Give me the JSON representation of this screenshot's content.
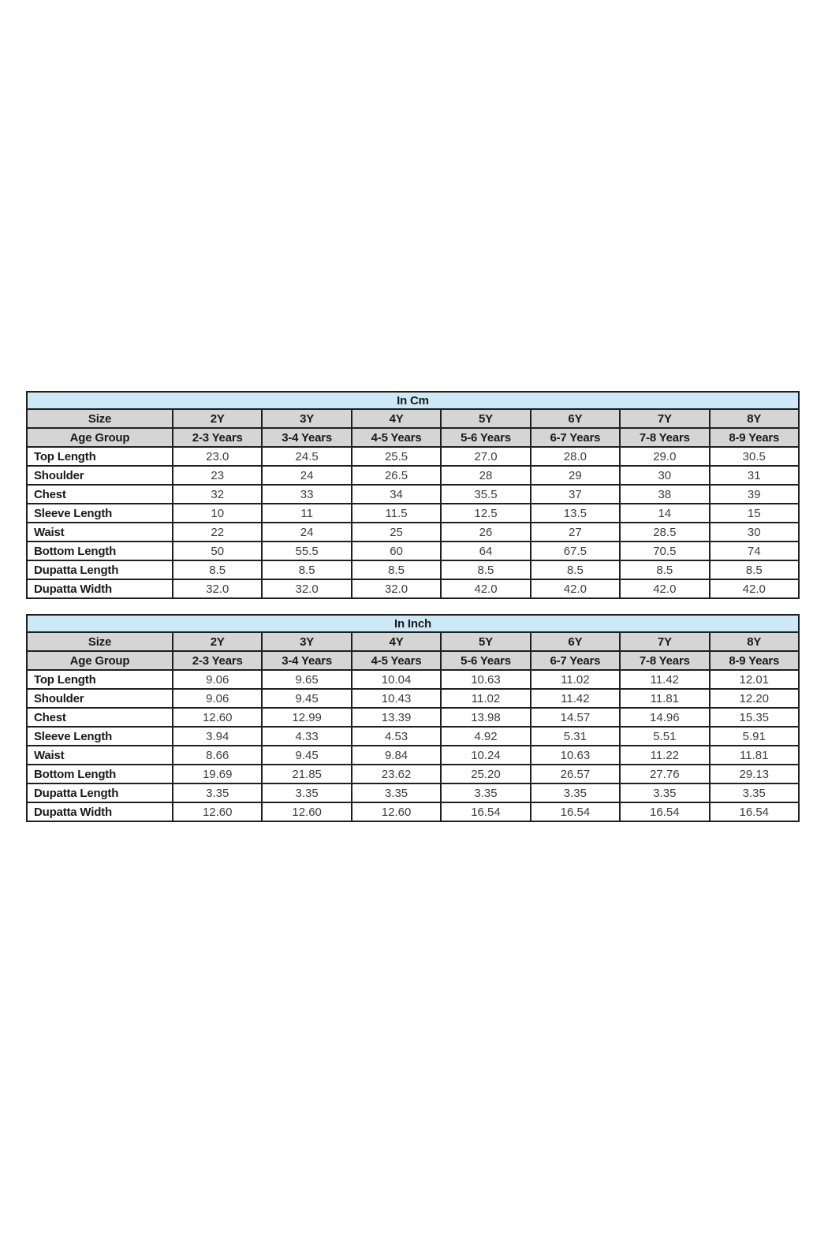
{
  "page": {
    "background": "#ffffff"
  },
  "colors": {
    "title_bg": "#cde9f6",
    "header_bg": "#d5d5d5",
    "border": "#1f1f1f",
    "label_text": "#1a1a1a",
    "value_text": "#3d3d3d"
  },
  "tables": [
    {
      "id": "cm",
      "title": "In Cm",
      "header": {
        "size_label": "Size",
        "age_label": "Age Group"
      },
      "sizes": [
        "2Y",
        "3Y",
        "4Y",
        "5Y",
        "6Y",
        "7Y",
        "8Y"
      ],
      "age_groups": [
        "2-3 Years",
        "3-4 Years",
        "4-5 Years",
        "5-6 Years",
        "6-7 Years",
        "7-8 Years",
        "8-9 Years"
      ],
      "rows": [
        {
          "label": "Top Length",
          "values": [
            "23.0",
            "24.5",
            "25.5",
            "27.0",
            "28.0",
            "29.0",
            "30.5"
          ]
        },
        {
          "label": "Shoulder",
          "values": [
            "23",
            "24",
            "26.5",
            "28",
            "29",
            "30",
            "31"
          ]
        },
        {
          "label": "Chest",
          "values": [
            "32",
            "33",
            "34",
            "35.5",
            "37",
            "38",
            "39"
          ]
        },
        {
          "label": "Sleeve Length",
          "values": [
            "10",
            "11",
            "11.5",
            "12.5",
            "13.5",
            "14",
            "15"
          ]
        },
        {
          "label": "Waist",
          "values": [
            "22",
            "24",
            "25",
            "26",
            "27",
            "28.5",
            "30"
          ]
        },
        {
          "label": "Bottom Length",
          "values": [
            "50",
            "55.5",
            "60",
            "64",
            "67.5",
            "70.5",
            "74"
          ]
        },
        {
          "label": "Dupatta Length",
          "values": [
            "8.5",
            "8.5",
            "8.5",
            "8.5",
            "8.5",
            "8.5",
            "8.5"
          ]
        },
        {
          "label": "Dupatta Width",
          "values": [
            "32.0",
            "32.0",
            "32.0",
            "42.0",
            "42.0",
            "42.0",
            "42.0"
          ]
        }
      ]
    },
    {
      "id": "inch",
      "title": "In Inch",
      "header": {
        "size_label": "Size",
        "age_label": "Age Group"
      },
      "sizes": [
        "2Y",
        "3Y",
        "4Y",
        "5Y",
        "6Y",
        "7Y",
        "8Y"
      ],
      "age_groups": [
        "2-3 Years",
        "3-4 Years",
        "4-5 Years",
        "5-6 Years",
        "6-7 Years",
        "7-8 Years",
        "8-9 Years"
      ],
      "rows": [
        {
          "label": "Top Length",
          "values": [
            "9.06",
            "9.65",
            "10.04",
            "10.63",
            "11.02",
            "11.42",
            "12.01"
          ]
        },
        {
          "label": "Shoulder",
          "values": [
            "9.06",
            "9.45",
            "10.43",
            "11.02",
            "11.42",
            "11.81",
            "12.20"
          ]
        },
        {
          "label": "Chest",
          "values": [
            "12.60",
            "12.99",
            "13.39",
            "13.98",
            "14.57",
            "14.96",
            "15.35"
          ]
        },
        {
          "label": "Sleeve Length",
          "values": [
            "3.94",
            "4.33",
            "4.53",
            "4.92",
            "5.31",
            "5.51",
            "5.91"
          ]
        },
        {
          "label": "Waist",
          "values": [
            "8.66",
            "9.45",
            "9.84",
            "10.24",
            "10.63",
            "11.22",
            "11.81"
          ]
        },
        {
          "label": "Bottom Length",
          "values": [
            "19.69",
            "21.85",
            "23.62",
            "25.20",
            "26.57",
            "27.76",
            "29.13"
          ]
        },
        {
          "label": "Dupatta Length",
          "values": [
            "3.35",
            "3.35",
            "3.35",
            "3.35",
            "3.35",
            "3.35",
            "3.35"
          ]
        },
        {
          "label": "Dupatta Width",
          "values": [
            "12.60",
            "12.60",
            "12.60",
            "16.54",
            "16.54",
            "16.54",
            "16.54"
          ]
        }
      ]
    }
  ]
}
